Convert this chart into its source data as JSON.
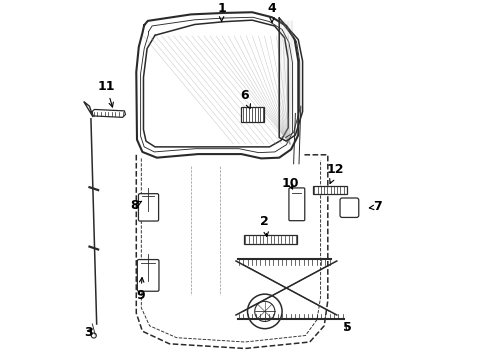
{
  "bg_color": "#ffffff",
  "line_color": "#2a2a2a",
  "labels": {
    "1": [
      0.435,
      0.025,
      0.435,
      0.062
    ],
    "4": [
      0.575,
      0.025,
      0.575,
      0.065
    ],
    "6": [
      0.5,
      0.265,
      0.515,
      0.305
    ],
    "11": [
      0.115,
      0.24,
      0.135,
      0.308
    ],
    "3": [
      0.065,
      0.925,
      0.082,
      0.905
    ],
    "8": [
      0.193,
      0.57,
      0.215,
      0.558
    ],
    "9": [
      0.21,
      0.82,
      0.215,
      0.76
    ],
    "2": [
      0.555,
      0.615,
      0.562,
      0.668
    ],
    "5": [
      0.785,
      0.91,
      0.775,
      0.893
    ],
    "7": [
      0.868,
      0.575,
      0.842,
      0.578
    ],
    "10": [
      0.625,
      0.51,
      0.637,
      0.535
    ],
    "12": [
      0.752,
      0.472,
      0.732,
      0.52
    ]
  }
}
